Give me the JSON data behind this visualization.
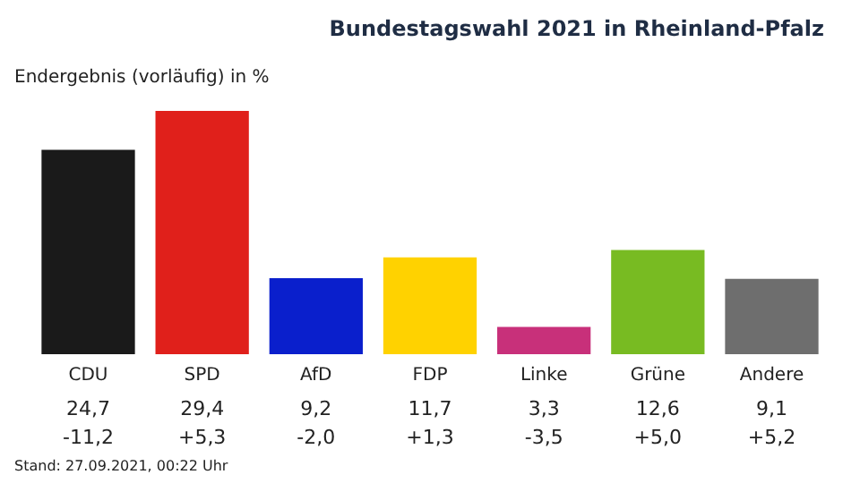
{
  "chart_data": {
    "type": "bar",
    "title": "Bundestagswahl 2021 in Rheinland-Pfalz",
    "subtitle": "Endergebnis (vorläufig)   in %",
    "categories": [
      "CDU",
      "SPD",
      "AfD",
      "FDP",
      "Linke",
      "Grüne",
      "Andere"
    ],
    "values": [
      24.7,
      29.4,
      9.2,
      11.7,
      3.3,
      12.6,
      9.1
    ],
    "colors": [
      "#1a1a1a",
      "#e0201b",
      "#0a1fcc",
      "#ffd200",
      "#c8307a",
      "#78bb22",
      "#6e6e6e"
    ],
    "value_labels": [
      "24,7",
      "29,4",
      "9,2",
      "11,7",
      "3,3",
      "12,6",
      "9,1"
    ],
    "annotations": [
      "-11,2",
      "+5,3",
      "-2,0",
      "+1,3",
      "-3,5",
      "+5,0",
      "+5,2",
      "Stand: 27.09.2021, 00:22 Uhr"
    ]
  }
}
